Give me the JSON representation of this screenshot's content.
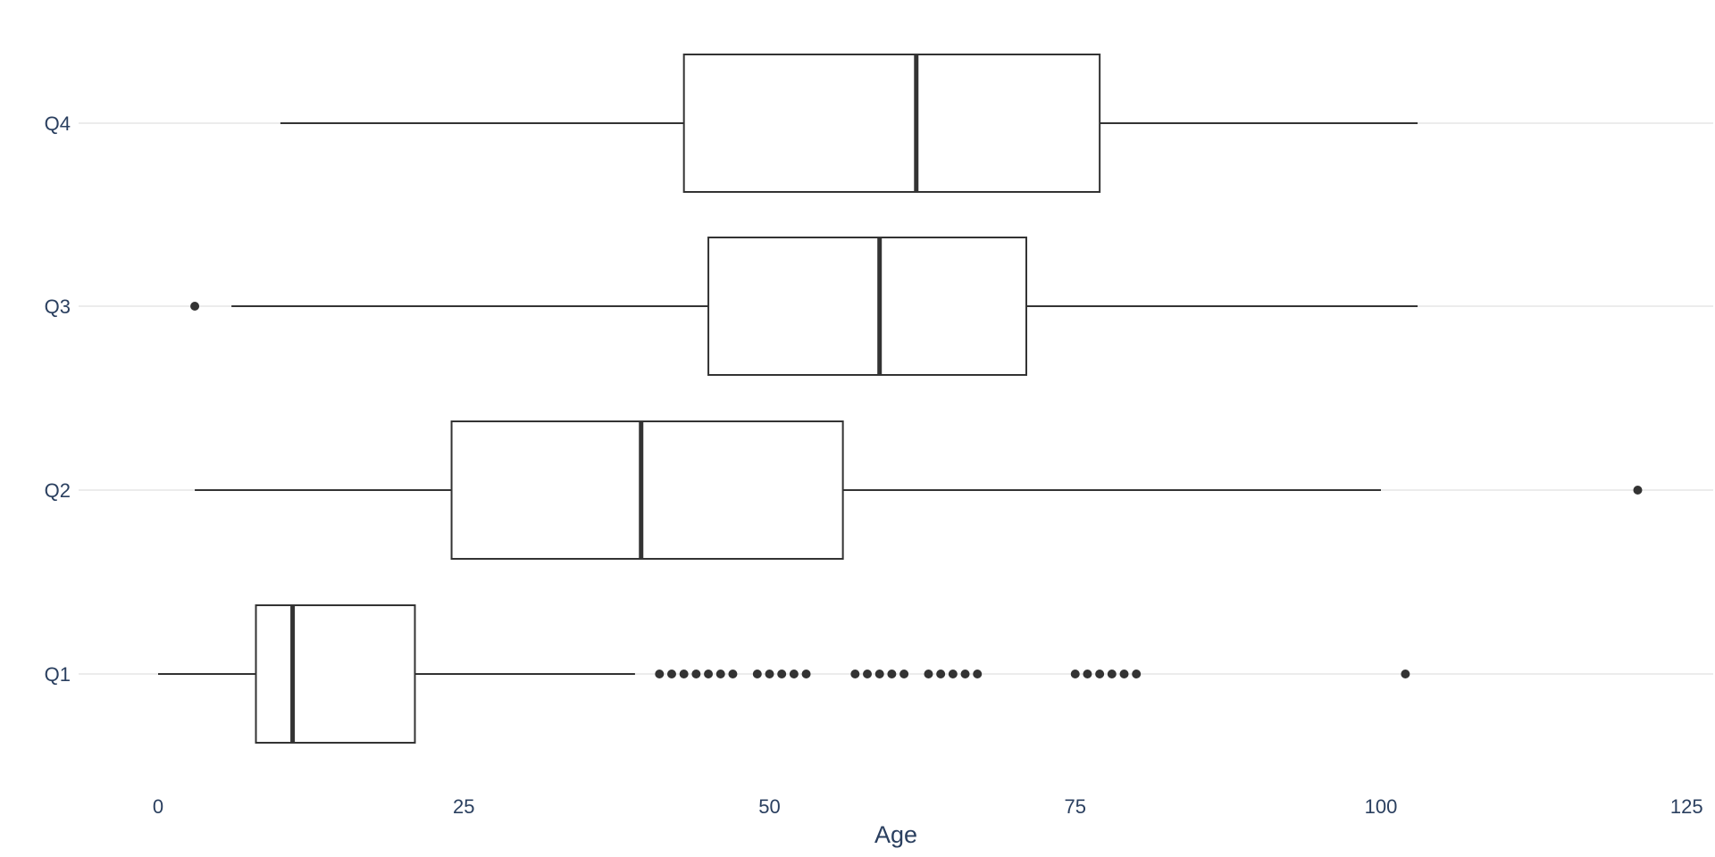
{
  "chart_data": {
    "type": "box",
    "orientation": "horizontal",
    "title": "",
    "xlabel": "Age",
    "ylabel": "",
    "xlim": [
      -5,
      127.5
    ],
    "x_ticks": [
      0,
      25,
      50,
      75,
      100,
      125
    ],
    "x_tick_labels": [
      "0",
      "25",
      "50",
      "75",
      "100",
      "125"
    ],
    "categories": [
      "Q1",
      "Q2",
      "Q3",
      "Q4"
    ],
    "grid": {
      "x": false,
      "y": true
    },
    "colors": {
      "box_fill": "#ffffff",
      "box_line": "#333333",
      "outlier": "#333333",
      "grid": "#d9d9d9",
      "text": "#2a3f5f"
    },
    "series": [
      {
        "category": "Q1",
        "whisker_low": 0,
        "q1": 8,
        "median": 11,
        "q3": 21,
        "whisker_high": 39,
        "outliers": [
          41,
          42,
          43,
          44,
          45,
          46,
          47,
          49,
          50,
          51,
          52,
          53,
          57,
          58,
          59,
          60,
          61,
          63,
          64,
          65,
          66,
          67,
          75,
          76,
          77,
          78,
          79,
          80,
          102
        ]
      },
      {
        "category": "Q2",
        "whisker_low": 3,
        "q1": 24,
        "median": 39.5,
        "q3": 56,
        "whisker_high": 100,
        "outliers": [
          121
        ]
      },
      {
        "category": "Q3",
        "whisker_low": 6,
        "q1": 45,
        "median": 59,
        "q3": 71,
        "whisker_high": 103,
        "outliers": [
          3
        ]
      },
      {
        "category": "Q4",
        "whisker_low": 10,
        "q1": 43,
        "median": 62,
        "q3": 77,
        "whisker_high": 103,
        "outliers": []
      }
    ]
  }
}
